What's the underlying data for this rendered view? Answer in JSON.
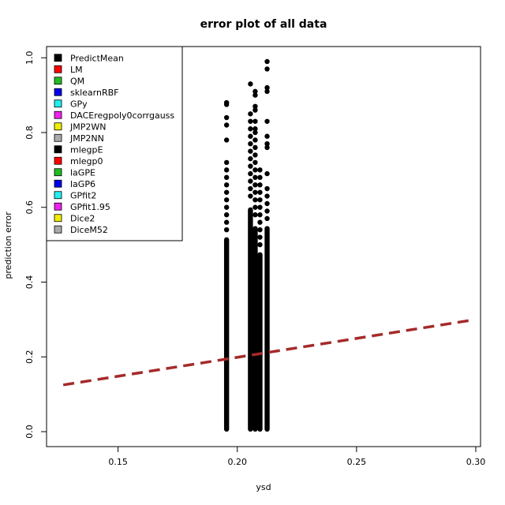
{
  "chart_data": {
    "type": "scatter",
    "title": "error plot of all data",
    "xlabel": "ysd",
    "ylabel": "prediction error",
    "xlim": [
      0.12,
      0.302
    ],
    "ylim": [
      -0.04,
      1.03
    ],
    "x_ticks": [
      0.15,
      0.2,
      0.25,
      0.3
    ],
    "x_tick_labels": [
      "0.15",
      "0.20",
      "0.25",
      "0.30"
    ],
    "y_ticks": [
      0.0,
      0.2,
      0.4,
      0.6,
      0.8,
      1.0
    ],
    "y_tick_labels": [
      "0.0",
      "0.2",
      "0.4",
      "0.6",
      "0.8",
      "1.0"
    ],
    "grid": false,
    "legend_position": "top-left",
    "legend": [
      {
        "label": "PredictMean",
        "color": "#000000"
      },
      {
        "label": "LM",
        "color": "#ff0000"
      },
      {
        "label": "QM",
        "color": "#22bb22"
      },
      {
        "label": "sklearnRBF",
        "color": "#0000ee"
      },
      {
        "label": "GPy",
        "color": "#22eeee"
      },
      {
        "label": "DACEregpoly0corrgauss",
        "color": "#ee22ee"
      },
      {
        "label": "JMP2WN",
        "color": "#eeee00"
      },
      {
        "label": "JMP2NN",
        "color": "#aaaaaa"
      },
      {
        "label": "mlegpE",
        "color": "#000000"
      },
      {
        "label": "mlegp0",
        "color": "#ff0000"
      },
      {
        "label": "laGPE",
        "color": "#22bb22"
      },
      {
        "label": "laGP6",
        "color": "#0000ee"
      },
      {
        "label": "GPfit2",
        "color": "#22eeee"
      },
      {
        "label": "GPfit1.95",
        "color": "#ee22ee"
      },
      {
        "label": "Dice2",
        "color": "#eeee00"
      },
      {
        "label": "DiceM52",
        "color": "#aaaaaa"
      }
    ],
    "point_color": "#000000",
    "columns": [
      {
        "x": 0.1955,
        "dense_max": 0.52,
        "outliers": [
          0.88,
          0.875,
          0.84,
          0.82,
          0.78,
          0.72,
          0.7,
          0.68,
          0.66,
          0.64,
          0.62,
          0.6,
          0.58,
          0.56,
          0.54
        ]
      },
      {
        "x": 0.2055,
        "dense_max": 0.6,
        "outliers": [
          0.93,
          0.85,
          0.83,
          0.81,
          0.79,
          0.77,
          0.75,
          0.73,
          0.71,
          0.69,
          0.67,
          0.65,
          0.63
        ]
      },
      {
        "x": 0.2075,
        "dense_max": 0.55,
        "outliers": [
          0.91,
          0.9,
          0.87,
          0.86,
          0.83,
          0.81,
          0.8,
          0.78,
          0.76,
          0.74,
          0.72,
          0.7,
          0.68,
          0.66,
          0.64,
          0.62,
          0.6,
          0.58
        ]
      },
      {
        "x": 0.2095,
        "dense_max": 0.48,
        "outliers": [
          0.7,
          0.68,
          0.66,
          0.64,
          0.62,
          0.6,
          0.58,
          0.56,
          0.54,
          0.52,
          0.5
        ]
      },
      {
        "x": 0.2125,
        "dense_max": 0.55,
        "outliers": [
          0.99,
          0.97,
          0.92,
          0.91,
          0.83,
          0.79,
          0.77,
          0.76,
          0.69,
          0.65,
          0.63,
          0.61,
          0.59,
          0.57
        ]
      }
    ],
    "trend_line": {
      "x": [
        0.127,
        0.298
      ],
      "y": [
        0.125,
        0.298
      ],
      "color": "#a52a2a",
      "style": "dashed"
    }
  }
}
